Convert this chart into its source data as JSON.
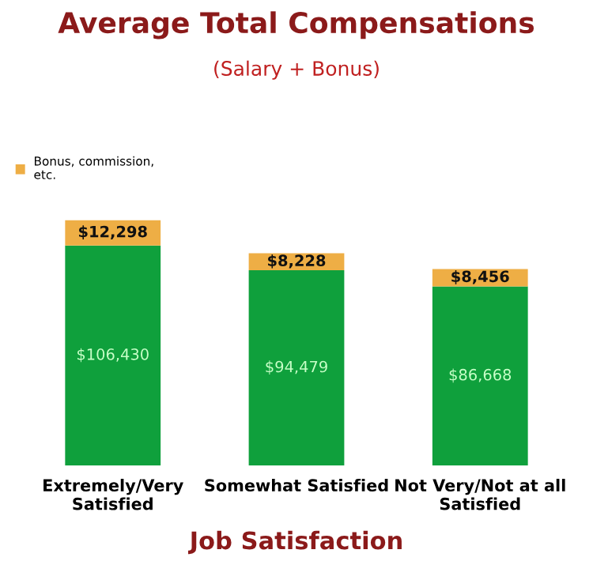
{
  "chart_data": {
    "type": "bar",
    "stacked": true,
    "title": "Average Total Compensations",
    "subtitle": "(Salary + Bonus)",
    "xlabel": "Job Satisfaction",
    "categories": [
      "Extremely/Very\nSatisfied",
      "Somewhat Satisfied",
      "Not Very/Not at all\nSatisfied"
    ],
    "legend": "top left",
    "grid": false,
    "series": [
      {
        "color": "#0fa03c",
        "values": [
          106430,
          94479,
          86668
        ],
        "value_labels": [
          "$106,430",
          "$94,479",
          "$86,668"
        ]
      },
      {
        "name": "Bonus, commission,\netc.",
        "color": "#eeae45",
        "values": [
          12298,
          8228,
          8456
        ],
        "value_labels": [
          "$12,298",
          "$8,228",
          "$8,456"
        ]
      }
    ]
  }
}
